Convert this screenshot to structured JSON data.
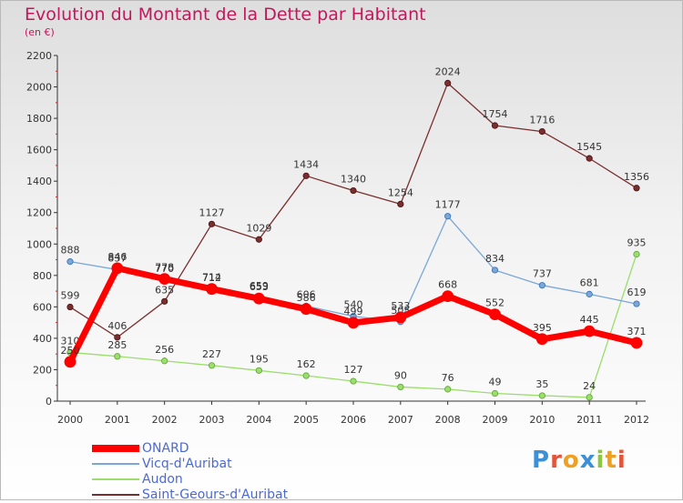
{
  "title": "Evolution du Montant de la Dette par Habitant",
  "subtitle": "(en €)",
  "logo": "Proxiti",
  "chart_data": {
    "type": "line",
    "x": [
      "2000",
      "2001",
      "2002",
      "2003",
      "2004",
      "2005",
      "2006",
      "2007",
      "2008",
      "2009",
      "2010",
      "2011",
      "2012"
    ],
    "ylim": [
      0,
      2200
    ],
    "yticks": [
      0,
      200,
      400,
      600,
      800,
      1000,
      1200,
      1400,
      1600,
      1800,
      2000,
      2200
    ],
    "grid": false,
    "legend": "bottom-left",
    "series": [
      {
        "name": "ONARD",
        "color": "#ff0000",
        "values": [
          250,
          846,
          778,
          714,
          653,
          586,
          499,
          533,
          668,
          552,
          395,
          445,
          371
        ]
      },
      {
        "name": "Vicq-d'Auribat",
        "color": "#7aa7d6",
        "values": [
          888,
          837,
          770,
          712,
          659,
          606,
          540,
          505,
          1177,
          834,
          737,
          681,
          619
        ]
      },
      {
        "name": "Audon",
        "color": "#9bde6b",
        "values": [
          310,
          285,
          256,
          227,
          195,
          162,
          127,
          90,
          76,
          49,
          35,
          24,
          935
        ]
      },
      {
        "name": "Saint-Geours-d'Auribat",
        "color": "#7a2e2e",
        "values": [
          599,
          406,
          635,
          1127,
          1029,
          1434,
          1340,
          1254,
          2024,
          1754,
          1716,
          1545,
          1356
        ]
      }
    ]
  }
}
